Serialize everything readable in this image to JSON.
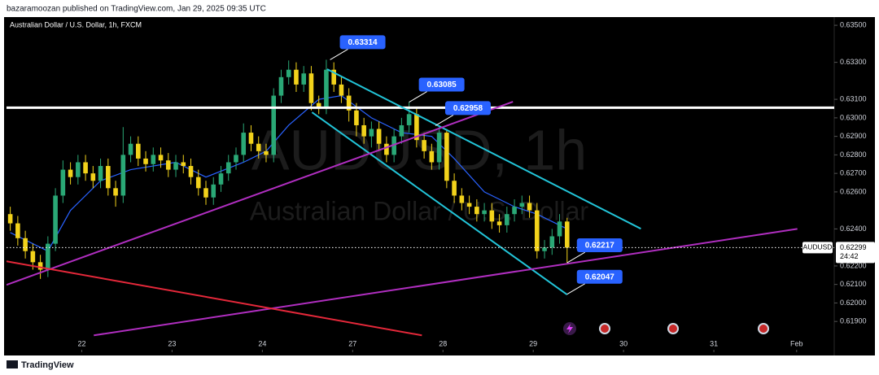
{
  "header": "bazaramoozan published on TradingView.com, Jan 29, 2025 09:35 UTC",
  "footer": "TradingView",
  "chart_data": {
    "type": "candlestick",
    "title": "Australian Dollar / U.S. Dollar, 1h, FXCM",
    "watermark": [
      "AUDUSD, 1h",
      "Australian Dollar / U.S. Dollar"
    ],
    "up_color": "#2aa876",
    "down_color": "#f2d21b",
    "open": [
      0.6248,
      0.6243,
      0.6235,
      0.6228,
      0.6222,
      0.6218,
      0.6232,
      0.6258,
      0.6272,
      0.6268,
      0.6276,
      0.627,
      0.6266,
      0.6274,
      0.6262,
      0.6258,
      0.628,
      0.6286,
      0.6278,
      0.6275,
      0.628,
      0.6277,
      0.6272,
      0.6276,
      0.6274,
      0.6268,
      0.6262,
      0.6257,
      0.6264,
      0.627,
      0.6276,
      0.628,
      0.6292,
      0.6286,
      0.6282,
      0.628,
      0.6312,
      0.6322,
      0.6326,
      0.6318,
      0.6324,
      0.6308,
      0.6306,
      0.6326,
      0.6318,
      0.6312,
      0.6304,
      0.6296,
      0.629,
      0.6294,
      0.6286,
      0.628,
      0.629,
      0.6296,
      0.6302,
      0.6288,
      0.6282,
      0.6276,
      0.6292,
      0.6266,
      0.6258,
      0.6254,
      0.6252,
      0.6248,
      0.625,
      0.6244,
      0.6242,
      0.6248,
      0.6252,
      0.6254,
      0.625,
      0.6228,
      0.623,
      0.6236,
      0.6244
    ],
    "high": [
      0.6252,
      0.6247,
      0.6239,
      0.6232,
      0.6226,
      0.6236,
      0.6262,
      0.6277,
      0.6276,
      0.628,
      0.628,
      0.6274,
      0.6278,
      0.6278,
      0.6266,
      0.6295,
      0.629,
      0.629,
      0.6282,
      0.6284,
      0.6284,
      0.6281,
      0.628,
      0.628,
      0.6278,
      0.6272,
      0.6266,
      0.6268,
      0.6274,
      0.628,
      0.6284,
      0.6297,
      0.6296,
      0.629,
      0.6286,
      0.6316,
      0.6326,
      0.6331,
      0.633,
      0.6328,
      0.6328,
      0.6312,
      0.63314,
      0.633,
      0.6322,
      0.6316,
      0.6308,
      0.63,
      0.6298,
      0.6298,
      0.629,
      0.6294,
      0.63,
      0.63085,
      0.6306,
      0.6292,
      0.6286,
      0.62958,
      0.6294,
      0.627,
      0.6262,
      0.6258,
      0.6256,
      0.6254,
      0.6254,
      0.6248,
      0.6252,
      0.6256,
      0.6258,
      0.6258,
      0.6254,
      0.6234,
      0.624,
      0.6248,
      0.6246
    ],
    "low": [
      0.6239,
      0.6231,
      0.6224,
      0.6218,
      0.6213,
      0.6214,
      0.6228,
      0.6254,
      0.6264,
      0.6264,
      0.6266,
      0.6262,
      0.6262,
      0.6258,
      0.6252,
      0.6254,
      0.6276,
      0.6274,
      0.6271,
      0.6271,
      0.6273,
      0.6268,
      0.6268,
      0.627,
      0.6264,
      0.6258,
      0.6253,
      0.6253,
      0.626,
      0.6266,
      0.6272,
      0.6276,
      0.6282,
      0.6278,
      0.6276,
      0.6276,
      0.6308,
      0.6318,
      0.6314,
      0.6314,
      0.6304,
      0.6302,
      0.6302,
      0.6314,
      0.6308,
      0.6298,
      0.629,
      0.6286,
      0.6284,
      0.6282,
      0.6276,
      0.6276,
      0.6286,
      0.6292,
      0.6284,
      0.6278,
      0.6272,
      0.6272,
      0.6262,
      0.6254,
      0.625,
      0.6248,
      0.6244,
      0.6244,
      0.624,
      0.6238,
      0.6238,
      0.6244,
      0.6248,
      0.6246,
      0.6224,
      0.6224,
      0.6226,
      0.6232,
      0.62217
    ],
    "close": [
      0.6243,
      0.6235,
      0.6228,
      0.6222,
      0.6218,
      0.6232,
      0.6258,
      0.6272,
      0.6268,
      0.6276,
      0.627,
      0.6266,
      0.6274,
      0.6262,
      0.6258,
      0.628,
      0.6286,
      0.6278,
      0.6275,
      0.628,
      0.6277,
      0.6272,
      0.6276,
      0.6274,
      0.6268,
      0.6262,
      0.6257,
      0.6264,
      0.627,
      0.6276,
      0.628,
      0.6292,
      0.6286,
      0.6282,
      0.628,
      0.6312,
      0.6322,
      0.6326,
      0.6318,
      0.6324,
      0.6308,
      0.6306,
      0.6326,
      0.6318,
      0.6312,
      0.6304,
      0.6296,
      0.629,
      0.6294,
      0.6286,
      0.628,
      0.629,
      0.6296,
      0.6302,
      0.6288,
      0.6282,
      0.6276,
      0.6292,
      0.6266,
      0.6258,
      0.6254,
      0.6252,
      0.6248,
      0.625,
      0.6244,
      0.6242,
      0.6248,
      0.6252,
      0.6254,
      0.625,
      0.6228,
      0.623,
      0.6236,
      0.6244,
      0.62299
    ],
    "ma": {
      "color": "#2962ff",
      "x": [
        0,
        5,
        8,
        12,
        16,
        22,
        26,
        31,
        34,
        37,
        41,
        44,
        48,
        52,
        56,
        59,
        63,
        67,
        70,
        74
      ],
      "values": [
        0.6238,
        0.6228,
        0.625,
        0.6266,
        0.6272,
        0.6276,
        0.6268,
        0.6276,
        0.6282,
        0.6296,
        0.631,
        0.6312,
        0.63,
        0.6292,
        0.629,
        0.6278,
        0.626,
        0.6252,
        0.6248,
        0.624
      ]
    },
    "xlim": [
      0,
      110
    ],
    "xticks": [
      {
        "value": 10,
        "label": "22"
      },
      {
        "value": 22,
        "label": "23"
      },
      {
        "value": 34,
        "label": "24"
      },
      {
        "value": 46,
        "label": "27"
      },
      {
        "value": 58,
        "label": "28"
      },
      {
        "value": 70,
        "label": "29"
      },
      {
        "value": 82,
        "label": "30"
      },
      {
        "value": 94,
        "label": "31"
      },
      {
        "value": 105,
        "label": "Feb"
      }
    ],
    "ylim": [
      0.61747,
      0.6354
    ],
    "yticks": [
      {
        "value": 0.635,
        "label": "0.63500"
      },
      {
        "value": 0.633,
        "label": "0.63300"
      },
      {
        "value": 0.631,
        "label": "0.63100"
      },
      {
        "value": 0.63,
        "label": "0.63000"
      },
      {
        "value": 0.629,
        "label": "0.62900"
      },
      {
        "value": 0.628,
        "label": "0.62800"
      },
      {
        "value": 0.627,
        "label": "0.62700"
      },
      {
        "value": 0.626,
        "label": "0.62600"
      },
      {
        "value": 0.624,
        "label": "0.62400"
      },
      {
        "value": 0.622,
        "label": "0.62200"
      },
      {
        "value": 0.621,
        "label": "0.62100"
      },
      {
        "value": 0.62,
        "label": "0.62000"
      },
      {
        "value": 0.619,
        "label": "0.61900"
      }
    ],
    "lines": [
      {
        "color": "#ffffff",
        "width": 3,
        "from_x": 0,
        "from_y": 0.63055,
        "to_x": 110,
        "to_y": 0.63055
      },
      {
        "color": "#22c4d8",
        "width": 2,
        "from_x": 42.6,
        "from_y": 0.63263,
        "to_x": 84.3,
        "to_y": 0.62401
      },
      {
        "color": "#22c4d8",
        "width": 2,
        "from_x": 40.6,
        "from_y": 0.6303,
        "to_x": 74.5,
        "to_y": 0.62045
      },
      {
        "color": "#b02ec0",
        "width": 2,
        "from_x": 0,
        "from_y": 0.62098,
        "to_x": 67.3,
        "to_y": 0.63087
      },
      {
        "color": "#b02ec0",
        "width": 2,
        "from_x": 11.6,
        "from_y": 0.61825,
        "to_x": 105.1,
        "to_y": 0.624
      },
      {
        "color": "#e5283a",
        "width": 2,
        "from_x": 0,
        "from_y": 0.62225,
        "to_x": 55.2,
        "to_y": 0.61825
      }
    ],
    "callouts": [
      {
        "x": 43,
        "value": 0.63314
      },
      {
        "x": 53.5,
        "value": 0.63085
      },
      {
        "x": 57,
        "value": 0.62958
      },
      {
        "x": 74.5,
        "value": 0.62217
      },
      {
        "x": 74.5,
        "value": 0.62047
      }
    ],
    "current": {
      "symbol": "AUDUSD",
      "price": 0.62299,
      "countdown": "24:42"
    }
  }
}
